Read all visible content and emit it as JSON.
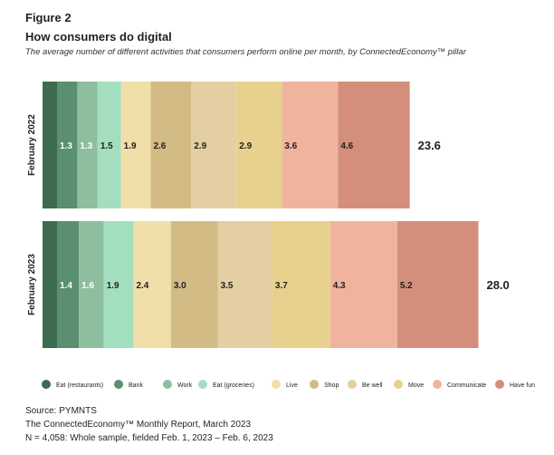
{
  "figure_label": "Figure 2",
  "title": "How consumers do digital",
  "subtitle": "The average number of different activities that consumers perform online per month, by ConnectedEconomy™ pillar",
  "chart_data": {
    "type": "bar",
    "orientation": "horizontal",
    "stacked": true,
    "categories": [
      "February 2022",
      "February 2023"
    ],
    "totals": [
      "23.6",
      "28.0"
    ],
    "series": [
      {
        "name": "Eat (restaurants)",
        "color": "#3d6b4f",
        "values": [
          null,
          null
        ]
      },
      {
        "name": "Bank",
        "color": "#5a8f6f",
        "values": [
          1.3,
          1.4
        ]
      },
      {
        "name": "Work",
        "color": "#8dbf9f",
        "values": [
          1.3,
          1.6
        ]
      },
      {
        "name": "Eat (groceries)",
        "color": "#a3dfbf",
        "values": [
          1.5,
          1.9
        ]
      },
      {
        "name": "Live",
        "color": "#f0dfa8",
        "values": [
          1.9,
          2.4
        ]
      },
      {
        "name": "Shop",
        "color": "#d3bb85",
        "values": [
          2.6,
          3.0
        ]
      },
      {
        "name": "Be well",
        "color": "#e4cfa2",
        "values": [
          2.9,
          3.5
        ]
      },
      {
        "name": "Move",
        "color": "#e8d18c",
        "values": [
          2.9,
          3.7
        ]
      },
      {
        "name": "Communicate",
        "color": "#f0b49e",
        "values": [
          3.6,
          4.3
        ]
      },
      {
        "name": "Have fun",
        "color": "#d48f7c",
        "values": [
          4.6,
          5.2
        ]
      }
    ],
    "grid": false,
    "legend": "bottom"
  },
  "footer": {
    "source": "Source: PYMNTS",
    "report": "The ConnectedEconomy™ Monthly Report, March 2023",
    "sample": "N = 4,058: Whole sample, fielded Feb. 1, 2023 – Feb. 6, 2023"
  }
}
